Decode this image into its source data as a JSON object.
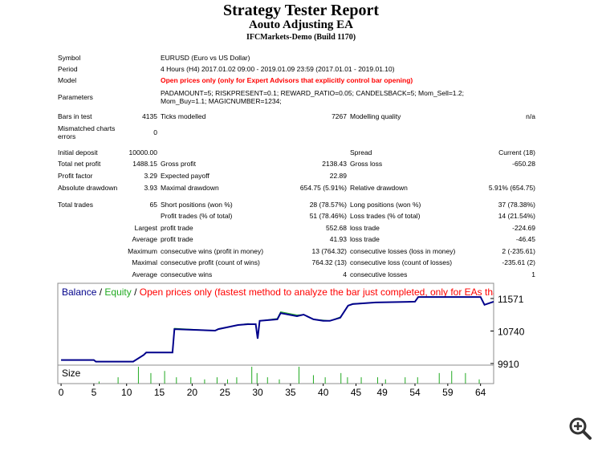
{
  "header": {
    "title": "Strategy Tester Report",
    "subtitle": "Aouto Adjusting EA",
    "server": "IFCMarkets-Demo (Build 1170)"
  },
  "table": {
    "rows": [
      [
        "Symbol",
        null,
        "EURUSD (Euro vs US Dollar)",
        null,
        null,
        null
      ],
      [
        "Period",
        null,
        "4 Hours (H4) 2017.01.02 09:00 - 2019.01.09 23:59 (2017.01.01 - 2019.01.10)",
        null,
        null,
        null
      ],
      [
        "Model",
        null,
        "Open prices only (only for Expert Advisors that explicitly control bar opening)",
        null,
        null,
        null
      ],
      [
        "Parameters",
        null,
        "PADAMOUNT=5; RISKPRESENT=0.1; REWARD_RATIO=0.05; CANDELSBACK=5; Mom_Sell=1.2; Mom_Buy=1.1; MAGICNUMBER=1234;",
        null,
        null,
        null
      ],
      [
        "Bars in test",
        "4135",
        "Ticks modelled",
        "7267",
        "Modelling quality",
        "n/a"
      ],
      [
        "Mismatched charts errors",
        "0",
        null,
        null,
        null,
        null
      ],
      [
        "Initial deposit",
        "10000.00",
        null,
        null,
        "Spread",
        "Current (18)"
      ],
      [
        "Total net profit",
        "1488.15",
        "Gross profit",
        "2138.43",
        "Gross loss",
        "-650.28"
      ],
      [
        "Profit factor",
        "3.29",
        "Expected payoff",
        "22.89",
        null,
        null
      ],
      [
        "Absolute drawdown",
        "3.93",
        "Maximal drawdown",
        "654.75 (5.91%)",
        "Relative drawdown",
        "5.91% (654.75)"
      ],
      [
        "Total trades",
        "65",
        "Short positions (won %)",
        "28 (78.57%)",
        "Long positions (won %)",
        "37 (78.38%)"
      ],
      [
        null,
        null,
        "Profit trades (% of total)",
        "51 (78.46%)",
        "Loss trades (% of total)",
        "14 (21.54%)"
      ],
      [
        null,
        "Largest",
        "profit trade",
        "552.68",
        "loss trade",
        "-224.69"
      ],
      [
        null,
        "Average",
        "profit trade",
        "41.93",
        "loss trade",
        "-46.45"
      ],
      [
        null,
        "Maximum",
        "consecutive wins (profit in money)",
        "13 (764.32)",
        "consecutive losses (loss in money)",
        "2 (-235.61)"
      ],
      [
        null,
        "Maximal",
        "consecutive profit (count of wins)",
        "764.32 (13)",
        "consecutive loss (count of losses)",
        "-235.61 (2)"
      ],
      [
        null,
        "Average",
        "consecutive wins",
        "4",
        "consecutive losses",
        "1"
      ]
    ]
  },
  "chart_data": {
    "type": "line",
    "legend_separator": "/",
    "legend_note": "Open prices only (fastest method to analyze the bar just completed, only for EAs that",
    "legend_note_color": "#ff0000",
    "series": [
      {
        "name": "Balance",
        "color": "#00008b",
        "x": [
          0,
          5,
          5.3,
          11,
          12.6,
          13,
          17,
          17.3,
          23.5,
          24,
          27,
          28.5,
          29.7,
          30,
          30.3,
          33,
          33.5,
          36,
          37,
          38.5,
          40,
          41,
          42.6,
          43.8,
          44.5,
          48,
          54,
          54.5,
          64,
          64.6,
          66
        ],
        "values": [
          10000,
          10000,
          9960,
          9960,
          10130,
          10190,
          10190,
          10790,
          10750,
          10790,
          10895,
          10915,
          10915,
          10546,
          11000,
          11040,
          11200,
          11120,
          11160,
          11040,
          11000,
          11000,
          11080,
          11390,
          11430,
          11470,
          11490,
          11610,
          11610,
          11410,
          11490
        ]
      },
      {
        "name": "Equity",
        "color": "#22aa22",
        "x": [
          0,
          5,
          5.3,
          11,
          12.6,
          13,
          17,
          17.3,
          23.5,
          24,
          27,
          28.5,
          29.7,
          30,
          30.3,
          33,
          33.5,
          36,
          37,
          38.5,
          40,
          41,
          42.6,
          43.8,
          44.5,
          48,
          54,
          54.5,
          64,
          64.6,
          66
        ],
        "values": [
          10000,
          10000,
          9960,
          9960,
          10130,
          10190,
          10190,
          10810,
          10750,
          10800,
          10895,
          10930,
          10915,
          10546,
          11000,
          11060,
          11230,
          11150,
          11160,
          11040,
          11020,
          11000,
          11100,
          11390,
          11440,
          11470,
          11490,
          11610,
          11610,
          11410,
          11490
        ]
      }
    ],
    "size": {
      "name": "Size",
      "color": "#22aa22",
      "ylim": [
        0,
        4
      ],
      "x": [
        5.8,
        8.7,
        11.8,
        13.7,
        15.8,
        17.6,
        19.8,
        21.9,
        23.8,
        25.4,
        26.8,
        29.1,
        29.9,
        31.5,
        33.3,
        36.3,
        38.5,
        40.3,
        42.7,
        43.7,
        45.8,
        48.3,
        49.5,
        52.5,
        54.4,
        57.7,
        59.6,
        61.7,
        63.8
      ],
      "values": [
        0.5,
        1.5,
        4,
        2.5,
        3,
        1.5,
        1.5,
        1,
        1.5,
        1,
        1.5,
        4,
        2.5,
        1.5,
        1,
        4,
        2,
        1.5,
        2.5,
        1.5,
        1.5,
        1.5,
        1,
        1.5,
        1.5,
        2.5,
        3,
        2.5,
        1
      ],
      "type": "bar"
    },
    "xlim": [
      -0.5,
      66
    ],
    "xticks": [
      0,
      5,
      10,
      15,
      20,
      25,
      30,
      35,
      40,
      45,
      49,
      54,
      59,
      64
    ],
    "ylim": [
      9869,
      11960
    ],
    "yticks": [
      9910,
      10740,
      11571
    ]
  }
}
